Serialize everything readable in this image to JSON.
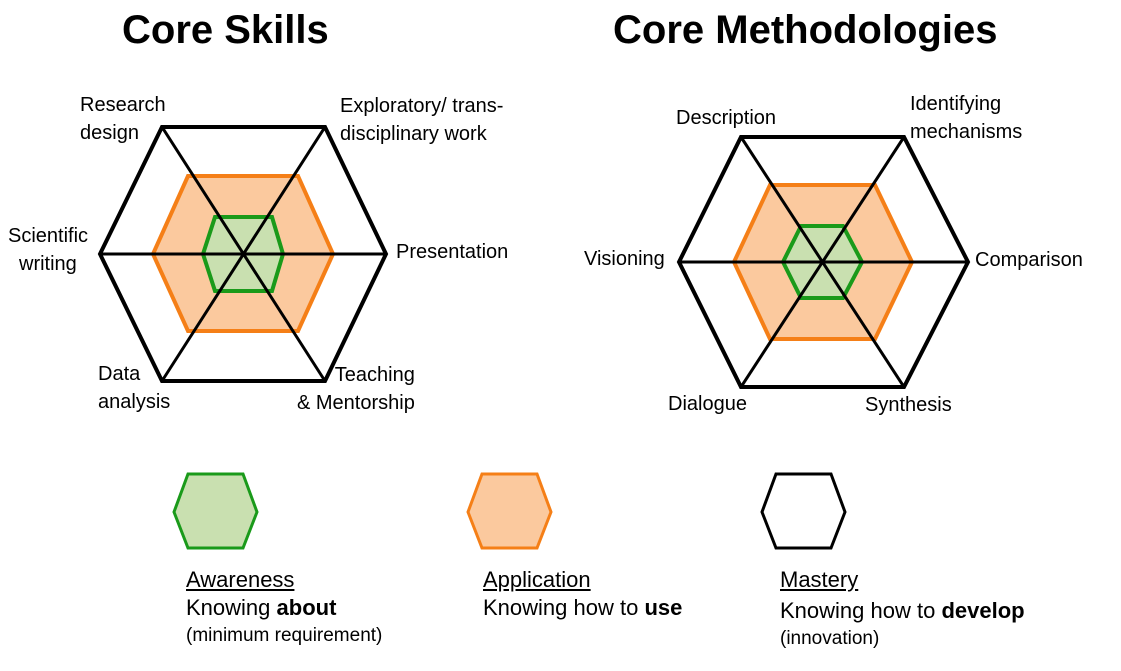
{
  "colors": {
    "awareness_stroke": "#1a9a1a",
    "awareness_fill": "#c9e0b0",
    "application_stroke": "#f57f17",
    "application_fill": "#fbc99e",
    "mastery_stroke": "#000000"
  },
  "skills": {
    "title": "Core Skills",
    "axes": {
      "research_design": [
        "Research",
        "design"
      ],
      "exploratory": [
        "Exploratory/ trans-",
        "disciplinary work"
      ],
      "presentation": "Presentation",
      "teaching": [
        "Teaching",
        "& Mentorship"
      ],
      "data_analysis": [
        "Data",
        "analysis"
      ],
      "scientific_writing": [
        "Scientific",
        "writing"
      ]
    }
  },
  "methodologies": {
    "title": "Core Methodologies",
    "axes": {
      "description": "Description",
      "identifying": [
        "Identifying",
        "mechanisms"
      ],
      "comparison": "Comparison",
      "synthesis": "Synthesis",
      "dialogue": "Dialogue",
      "visioning": "Visioning"
    }
  },
  "legend": [
    {
      "level": "Awareness",
      "prefix": "Knowing ",
      "bold": "about",
      "note": "(minimum requirement)"
    },
    {
      "level": "Application",
      "prefix": "Knowing how to ",
      "bold": "use",
      "note": ""
    },
    {
      "level": "Mastery",
      "prefix": "Knowing how to ",
      "bold": "develop",
      "note": "(innovation)"
    }
  ]
}
